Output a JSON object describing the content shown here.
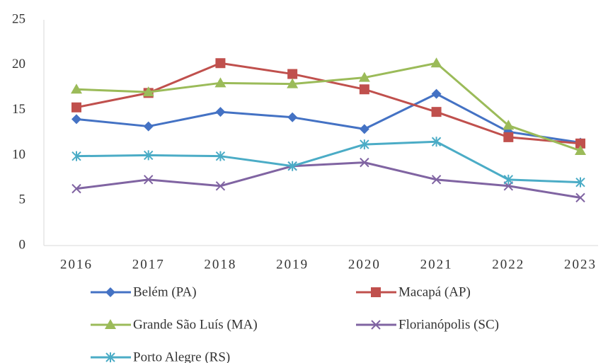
{
  "chart_data": {
    "type": "line",
    "categories": [
      "2016",
      "2017",
      "2018",
      "2019",
      "2020",
      "2021",
      "2022",
      "2023"
    ],
    "series": [
      {
        "name": "Belém (PA)",
        "color": "#4472c4",
        "marker": "diamond",
        "values": [
          14.0,
          13.2,
          14.8,
          14.2,
          12.9,
          16.8,
          12.6,
          11.4
        ]
      },
      {
        "name": "Macapá (AP)",
        "color": "#c0504d",
        "marker": "square",
        "values": [
          15.3,
          16.9,
          20.2,
          19.0,
          17.3,
          14.8,
          12.0,
          11.3
        ]
      },
      {
        "name": "Grande São Luís (MA)",
        "color": "#9bbb59",
        "marker": "triangle",
        "values": [
          17.3,
          17.0,
          18.0,
          17.9,
          18.6,
          20.2,
          13.3,
          10.5
        ]
      },
      {
        "name": "Florianópolis (SC)",
        "color": "#8064a2",
        "marker": "x",
        "values": [
          6.3,
          7.3,
          6.6,
          8.8,
          9.2,
          7.3,
          6.6,
          5.3
        ]
      },
      {
        "name": "Porto Alegre (RS)",
        "color": "#4bacc6",
        "marker": "star",
        "values": [
          9.9,
          10.0,
          9.9,
          8.8,
          11.2,
          11.5,
          7.3,
          7.0
        ]
      }
    ],
    "ylim": [
      0,
      25
    ],
    "yticks": [
      0,
      5,
      10,
      15,
      20,
      25
    ],
    "grid": false
  }
}
